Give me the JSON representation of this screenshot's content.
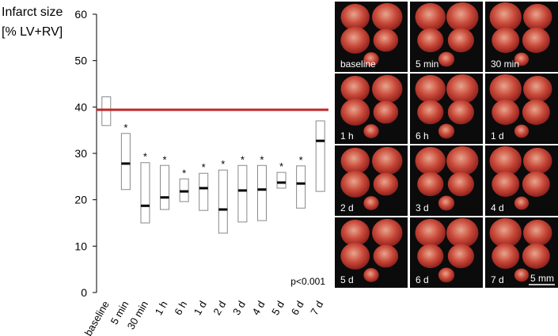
{
  "chart_data": {
    "type": "floating-box",
    "y_label": [
      "Infarct size",
      "[% LV+RV]"
    ],
    "categories": [
      "baseline",
      "5 min",
      "30 min",
      "1 h",
      "6 h",
      "1 d",
      "2 d",
      "3 d",
      "4 d",
      "5 d",
      "6 d",
      "7 d"
    ],
    "low": [
      36.0,
      22.2,
      15.0,
      17.9,
      19.6,
      17.7,
      12.8,
      15.2,
      15.5,
      22.5,
      18.2,
      21.8
    ],
    "high": [
      42.2,
      34.3,
      28.0,
      27.4,
      24.5,
      25.7,
      26.4,
      27.4,
      27.4,
      25.9,
      27.3,
      37.0
    ],
    "median": [
      null,
      27.8,
      18.7,
      20.5,
      21.8,
      22.5,
      17.9,
      22.0,
      22.2,
      23.7,
      23.5,
      32.7
    ],
    "significance": [
      null,
      "*",
      "*",
      "*",
      "*",
      "*",
      "*",
      "*",
      "*",
      "*",
      "*",
      null
    ],
    "reference_line": {
      "value": 39.4,
      "color": "#c0282a"
    },
    "annotation": "p<0.001",
    "box_color": "#888888",
    "median_color": "#000000",
    "ylim": [
      0,
      60
    ],
    "yticks": [
      0,
      10,
      20,
      30,
      40,
      50,
      60
    ],
    "grid": false
  },
  "image_panels": {
    "labels": [
      "baseline",
      "5 min",
      "30 min",
      "1 h",
      "6 h",
      "1 d",
      "2 d",
      "3 d",
      "4 d",
      "5 d",
      "6 d",
      "7 d"
    ],
    "scale_bar": "5 mm"
  }
}
